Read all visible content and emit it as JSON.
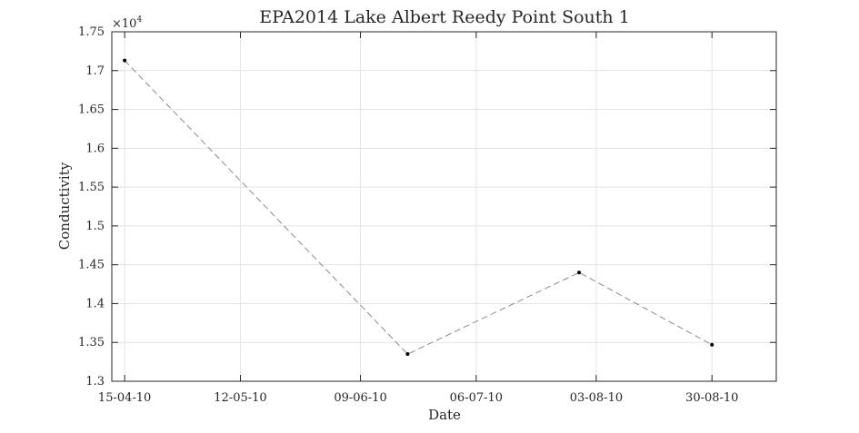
{
  "chart_data": {
    "type": "line",
    "title": "EPA2014 Lake Albert Reedy Point South 1",
    "xlabel": "Date",
    "ylabel": "Conductivity",
    "y_exponent_label": "×10",
    "y_exponent_power": "4",
    "x_axis_type": "date",
    "xlim": [
      "2010-04-12",
      "2010-09-14"
    ],
    "ylim": [
      1.3,
      1.75
    ],
    "y_scale_factor": 10000,
    "x_ticks": [
      {
        "date": "2010-04-15",
        "label": "15-04-10"
      },
      {
        "date": "2010-05-12",
        "label": "12-05-10"
      },
      {
        "date": "2010-06-09",
        "label": "09-06-10"
      },
      {
        "date": "2010-07-06",
        "label": "06-07-10"
      },
      {
        "date": "2010-08-03",
        "label": "03-08-10"
      },
      {
        "date": "2010-08-30",
        "label": "30-08-10"
      }
    ],
    "y_ticks": [
      1.3,
      1.35,
      1.4,
      1.45,
      1.5,
      1.55,
      1.6,
      1.65,
      1.7,
      1.75
    ],
    "y_tick_labels": [
      "1.3",
      "1.35",
      "1.4",
      "1.45",
      "1.5",
      "1.55",
      "1.6",
      "1.65",
      "1.7",
      "1.75"
    ],
    "grid": true,
    "series": [
      {
        "x": [
          "2010-04-15",
          "2010-06-20",
          "2010-07-30",
          "2010-08-30"
        ],
        "y": [
          17130,
          13350,
          14400,
          13470
        ]
      }
    ],
    "line_color": "#8c8c8c",
    "marker_color": "#000000"
  }
}
